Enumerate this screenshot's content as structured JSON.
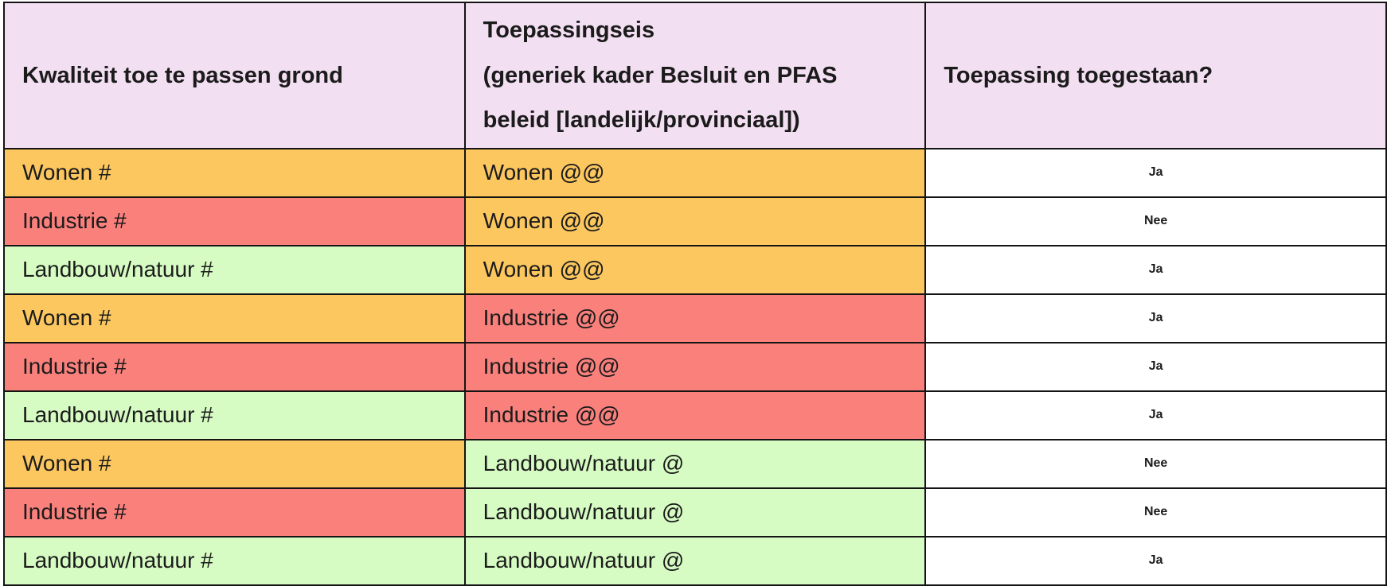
{
  "table": {
    "headers": [
      "Kwaliteit toe te passen grond",
      "Toepassingseis\n(generiek kader Besluit en PFAS\nbeleid [landelijk/provinciaal])",
      "Toepassing toegestaan?"
    ],
    "rows": [
      {
        "grond": "Wonen #",
        "grond_color": "orange",
        "eis": "Wonen @@",
        "eis_color": "orange",
        "toegestaan": "Ja"
      },
      {
        "grond": "Industrie #",
        "grond_color": "red",
        "eis": "Wonen @@",
        "eis_color": "orange",
        "toegestaan": "Nee"
      },
      {
        "grond": "Landbouw/natuur #",
        "grond_color": "green",
        "eis": "Wonen @@",
        "eis_color": "orange",
        "toegestaan": "Ja"
      },
      {
        "grond": "Wonen #",
        "grond_color": "orange",
        "eis": "Industrie @@",
        "eis_color": "red",
        "toegestaan": "Ja"
      },
      {
        "grond": "Industrie #",
        "grond_color": "red",
        "eis": "Industrie @@",
        "eis_color": "red",
        "toegestaan": "Ja"
      },
      {
        "grond": "Landbouw/natuur #",
        "grond_color": "green",
        "eis": "Industrie @@",
        "eis_color": "red",
        "toegestaan": "Ja"
      },
      {
        "grond": "Wonen #",
        "grond_color": "orange",
        "eis": "Landbouw/natuur @",
        "eis_color": "green",
        "toegestaan": "Nee"
      },
      {
        "grond": "Industrie #",
        "grond_color": "red",
        "eis": "Landbouw/natuur @",
        "eis_color": "green",
        "toegestaan": "Nee"
      },
      {
        "grond": "Landbouw/natuur #",
        "grond_color": "green",
        "eis": "Landbouw/natuur @",
        "eis_color": "green",
        "toegestaan": "Ja"
      }
    ]
  },
  "colors": {
    "orange": "#FCC75F",
    "red": "#FA807C",
    "green": "#D6FCC3",
    "header_pink": "#F3DFF2",
    "answer_white": "#FFFFFF",
    "border": "#141414",
    "text": "#1B1B1B"
  }
}
